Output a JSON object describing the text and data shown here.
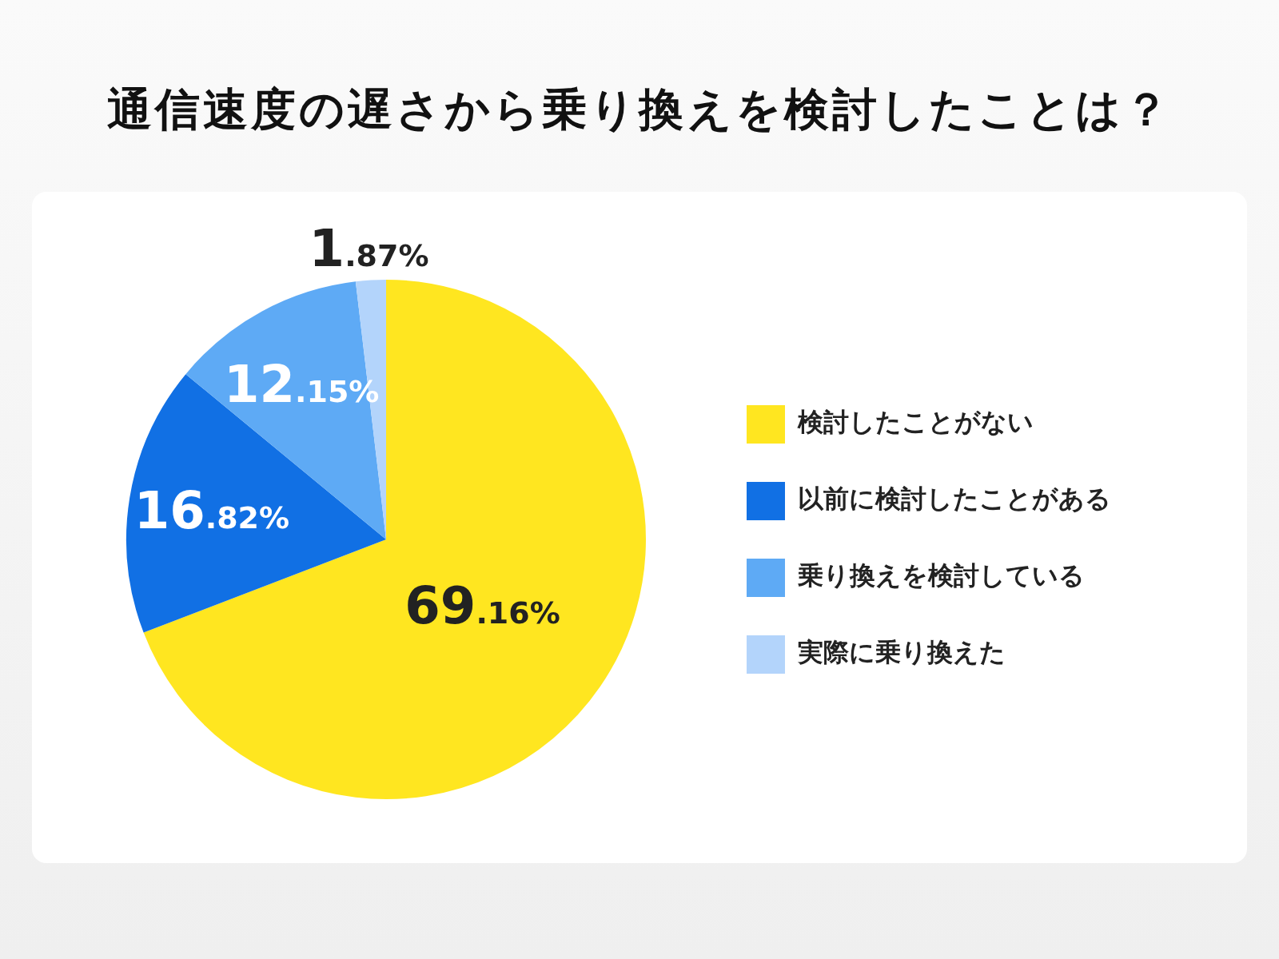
{
  "chart_data": {
    "type": "pie",
    "title": "通信速度の遅さから乗り換えを検討したことは？",
    "categories": [
      "検討したことがない",
      "以前に検討したことがある",
      "乗り換えを検討している",
      "実際に乗り換えた"
    ],
    "values": [
      69.16,
      16.82,
      12.15,
      1.87
    ],
    "colors": [
      "#ffe620",
      "#1170e4",
      "#5eaaf5",
      "#b3d4fb"
    ],
    "value_labels": [
      "69.16%",
      "16.82%",
      "12.15%",
      "1.87%"
    ],
    "legend": "right"
  }
}
